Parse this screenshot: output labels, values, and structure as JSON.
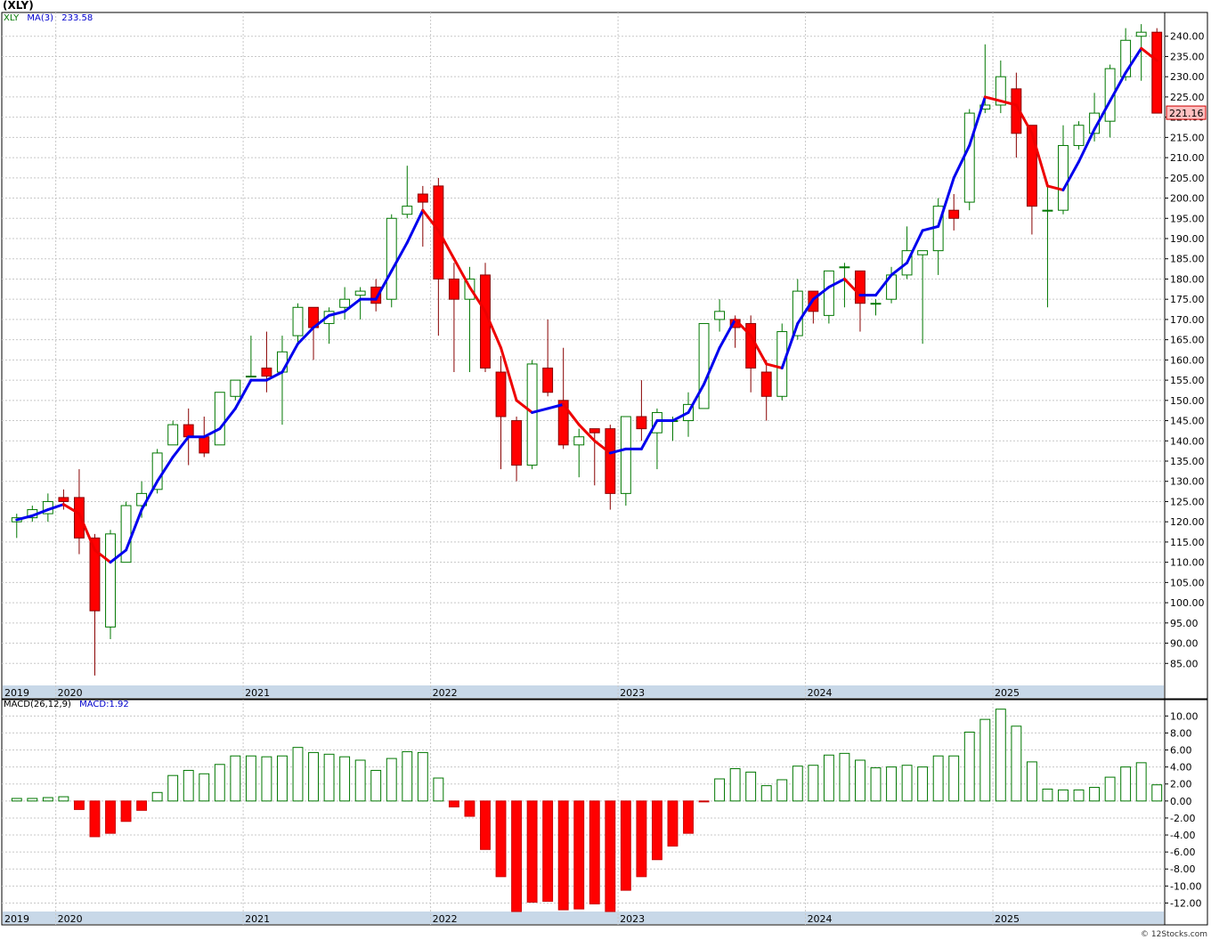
{
  "title": "(XLY)",
  "legend_price": {
    "ticker": "XLY",
    "ma_label": "MA(3)",
    "ma_value": "233.58"
  },
  "legend_macd": {
    "label": "MACD(26,12,9)",
    "value": "MACD:1.92"
  },
  "credit": "© 12Stocks.com",
  "last_price_label": "221.16",
  "colors": {
    "up": "#007700",
    "down": "#ff0000",
    "ma_up": "#0000ee",
    "ma_down": "#ee0000",
    "grid": "#c8c8c8",
    "axis_band": "#c8d8e8",
    "last_price_bg": "#ffc0c0"
  },
  "chart_data": [
    {
      "type": "candlestick",
      "interval": "monthly",
      "ylim": [
        80,
        245
      ],
      "yticks": [
        85,
        90,
        95,
        100,
        105,
        110,
        115,
        120,
        125,
        130,
        135,
        140,
        145,
        150,
        155,
        160,
        165,
        170,
        175,
        180,
        185,
        190,
        195,
        200,
        205,
        210,
        215,
        220,
        225,
        230,
        235,
        240
      ],
      "ytick_labels": [
        "85.00",
        "90.00",
        "95.00",
        "100.00",
        "105.00",
        "110.00",
        "115.00",
        "120.00",
        "125.00",
        "130.00",
        "135.00",
        "140.00",
        "145.00",
        "150.00",
        "155.00",
        "160.00",
        "165.00",
        "170.00",
        "175.00",
        "180.00",
        "185.00",
        "190.00",
        "195.00",
        "200.00",
        "205.00",
        "210.00",
        "215.00",
        "220.00",
        "225.00",
        "230.00",
        "235.00",
        "240.00"
      ],
      "year_labels": [
        {
          "label": "2019",
          "index": 0
        },
        {
          "label": "2020",
          "index": 3
        },
        {
          "label": "2021",
          "index": 15
        },
        {
          "label": "2022",
          "index": 27
        },
        {
          "label": "2023",
          "index": 39
        },
        {
          "label": "2024",
          "index": 51
        },
        {
          "label": "2025",
          "index": 63
        }
      ],
      "candles": [
        {
          "o": 120,
          "h": 122,
          "l": 116,
          "c": 121
        },
        {
          "o": 121,
          "h": 124,
          "l": 120,
          "c": 123
        },
        {
          "o": 122,
          "h": 127,
          "l": 120,
          "c": 125
        },
        {
          "o": 126,
          "h": 128,
          "l": 123,
          "c": 125
        },
        {
          "o": 126,
          "h": 133,
          "l": 112,
          "c": 116
        },
        {
          "o": 116,
          "h": 117,
          "l": 82,
          "c": 98
        },
        {
          "o": 94,
          "h": 118,
          "l": 91,
          "c": 117
        },
        {
          "o": 110,
          "h": 125,
          "l": 110,
          "c": 124
        },
        {
          "o": 124,
          "h": 130,
          "l": 121,
          "c": 127
        },
        {
          "o": 128,
          "h": 138,
          "l": 127,
          "c": 137
        },
        {
          "o": 139,
          "h": 145,
          "l": 139,
          "c": 144
        },
        {
          "o": 144,
          "h": 148,
          "l": 134,
          "c": 141
        },
        {
          "o": 141,
          "h": 146,
          "l": 136,
          "c": 137
        },
        {
          "o": 139,
          "h": 152,
          "l": 139,
          "c": 152
        },
        {
          "o": 151,
          "h": 155,
          "l": 150,
          "c": 155
        },
        {
          "o": 156,
          "h": 166,
          "l": 156,
          "c": 156
        },
        {
          "o": 158,
          "h": 167,
          "l": 152,
          "c": 156
        },
        {
          "o": 157,
          "h": 166,
          "l": 144,
          "c": 162
        },
        {
          "o": 166,
          "h": 174,
          "l": 164,
          "c": 173
        },
        {
          "o": 173,
          "h": 173,
          "l": 160,
          "c": 168
        },
        {
          "o": 169,
          "h": 173,
          "l": 164,
          "c": 172
        },
        {
          "o": 173,
          "h": 178,
          "l": 170,
          "c": 175
        },
        {
          "o": 176,
          "h": 178,
          "l": 170,
          "c": 177
        },
        {
          "o": 178,
          "h": 180,
          "l": 172,
          "c": 174
        },
        {
          "o": 175,
          "h": 196,
          "l": 173,
          "c": 195
        },
        {
          "o": 196,
          "h": 208,
          "l": 195,
          "c": 198
        },
        {
          "o": 201,
          "h": 203,
          "l": 188,
          "c": 199
        },
        {
          "o": 203,
          "h": 205,
          "l": 166,
          "c": 180
        },
        {
          "o": 180,
          "h": 184,
          "l": 157,
          "c": 175
        },
        {
          "o": 175,
          "h": 183,
          "l": 157,
          "c": 180
        },
        {
          "o": 181,
          "h": 184,
          "l": 157,
          "c": 158
        },
        {
          "o": 157,
          "h": 161,
          "l": 133,
          "c": 146
        },
        {
          "o": 145,
          "h": 146,
          "l": 130,
          "c": 134
        },
        {
          "o": 134,
          "h": 160,
          "l": 133,
          "c": 159
        },
        {
          "o": 158,
          "h": 170,
          "l": 151,
          "c": 152
        },
        {
          "o": 150,
          "h": 163,
          "l": 138,
          "c": 139
        },
        {
          "o": 139,
          "h": 143,
          "l": 131,
          "c": 141
        },
        {
          "o": 143,
          "h": 143,
          "l": 129,
          "c": 142
        },
        {
          "o": 143,
          "h": 144,
          "l": 123,
          "c": 127
        },
        {
          "o": 127,
          "h": 146,
          "l": 124,
          "c": 146
        },
        {
          "o": 146,
          "h": 155,
          "l": 140,
          "c": 143
        },
        {
          "o": 142,
          "h": 148,
          "l": 133,
          "c": 147
        },
        {
          "o": 145,
          "h": 146,
          "l": 140,
          "c": 145
        },
        {
          "o": 145,
          "h": 152,
          "l": 141,
          "c": 149
        },
        {
          "o": 148,
          "h": 169,
          "l": 148,
          "c": 169
        },
        {
          "o": 170,
          "h": 175,
          "l": 167,
          "c": 172
        },
        {
          "o": 170,
          "h": 171,
          "l": 163,
          "c": 168
        },
        {
          "o": 169,
          "h": 171,
          "l": 152,
          "c": 158
        },
        {
          "o": 157,
          "h": 160,
          "l": 145,
          "c": 151
        },
        {
          "o": 151,
          "h": 169,
          "l": 150,
          "c": 167
        },
        {
          "o": 166,
          "h": 180,
          "l": 165,
          "c": 177
        },
        {
          "o": 177,
          "h": 177,
          "l": 169,
          "c": 172
        },
        {
          "o": 171,
          "h": 182,
          "l": 169,
          "c": 182
        },
        {
          "o": 183,
          "h": 184,
          "l": 173,
          "c": 183
        },
        {
          "o": 182,
          "h": 182,
          "l": 167,
          "c": 174
        },
        {
          "o": 174,
          "h": 175,
          "l": 171,
          "c": 174
        },
        {
          "o": 175,
          "h": 183,
          "l": 174,
          "c": 181
        },
        {
          "o": 181,
          "h": 193,
          "l": 180,
          "c": 187
        },
        {
          "o": 186,
          "h": 186,
          "l": 164,
          "c": 187
        },
        {
          "o": 187,
          "h": 200,
          "l": 181,
          "c": 198
        },
        {
          "o": 197,
          "h": 201,
          "l": 192,
          "c": 195
        },
        {
          "o": 199,
          "h": 222,
          "l": 197,
          "c": 221
        },
        {
          "o": 222,
          "h": 238,
          "l": 221,
          "c": 223
        },
        {
          "o": 223,
          "h": 234,
          "l": 221,
          "c": 230
        },
        {
          "o": 227,
          "h": 231,
          "l": 210,
          "c": 216
        },
        {
          "o": 218,
          "h": 218,
          "l": 191,
          "c": 198
        },
        {
          "o": 197,
          "h": 204,
          "l": 173,
          "c": 197
        },
        {
          "o": 197,
          "h": 218,
          "l": 196,
          "c": 213
        },
        {
          "o": 213,
          "h": 219,
          "l": 212,
          "c": 218
        },
        {
          "o": 216,
          "h": 226,
          "l": 214,
          "c": 221
        },
        {
          "o": 219,
          "h": 233,
          "l": 215,
          "c": 232
        },
        {
          "o": 230,
          "h": 242,
          "l": 229,
          "c": 239
        },
        {
          "o": 240,
          "h": 243,
          "l": 229,
          "c": 241
        },
        {
          "o": 241,
          "h": 242,
          "l": 221,
          "c": 221
        }
      ],
      "ma": [
        120.5,
        121.5,
        123,
        124.3,
        122,
        113,
        110,
        113,
        123,
        130,
        136,
        141,
        141,
        143,
        148,
        155,
        155,
        157,
        164,
        168,
        171,
        172,
        175,
        175,
        182,
        189,
        197,
        192,
        185,
        178,
        172,
        163,
        150,
        147,
        148,
        149,
        144,
        140,
        137,
        138,
        138,
        145,
        145,
        147,
        154,
        163,
        170,
        166,
        159,
        158,
        169,
        175,
        178,
        180,
        176,
        176,
        181,
        184,
        192,
        193,
        205,
        213,
        225,
        224,
        223,
        216,
        203,
        202,
        209,
        217,
        224,
        231,
        237,
        234
      ]
    },
    {
      "type": "bar",
      "name": "MACD",
      "ylim": [
        -13,
        11.5
      ],
      "yticks": [
        -12,
        -10,
        -8,
        -6,
        -4,
        -2,
        0,
        2,
        4,
        6,
        8,
        10
      ],
      "ytick_labels": [
        "-12.00",
        "-10.00",
        "-8.00",
        "-6.00",
        "-4.00",
        "-2.00",
        "0.00",
        "2.00",
        "4.00",
        "6.00",
        "8.00",
        "10.00"
      ],
      "values": [
        0.3,
        0.3,
        0.4,
        0.5,
        -1.0,
        -4.2,
        -3.8,
        -2.4,
        -1.1,
        1.0,
        3.0,
        3.6,
        3.2,
        4.3,
        5.3,
        5.3,
        5.2,
        5.3,
        6.3,
        5.7,
        5.5,
        5.2,
        4.8,
        3.6,
        5.0,
        5.8,
        5.7,
        2.7,
        -0.7,
        -1.8,
        -5.7,
        -8.9,
        -13.0,
        -11.9,
        -11.8,
        -12.8,
        -12.7,
        -12.1,
        -13.0,
        -10.5,
        -8.9,
        -6.9,
        -5.3,
        -3.8,
        -0.1,
        2.6,
        3.8,
        3.4,
        1.8,
        2.5,
        4.1,
        4.2,
        5.4,
        5.6,
        4.8,
        3.9,
        4.0,
        4.2,
        4.0,
        5.3,
        5.3,
        8.1,
        9.6,
        10.8,
        8.8,
        4.6,
        1.4,
        1.3,
        1.3,
        1.6,
        2.8,
        4.0,
        4.5,
        1.9
      ]
    }
  ]
}
